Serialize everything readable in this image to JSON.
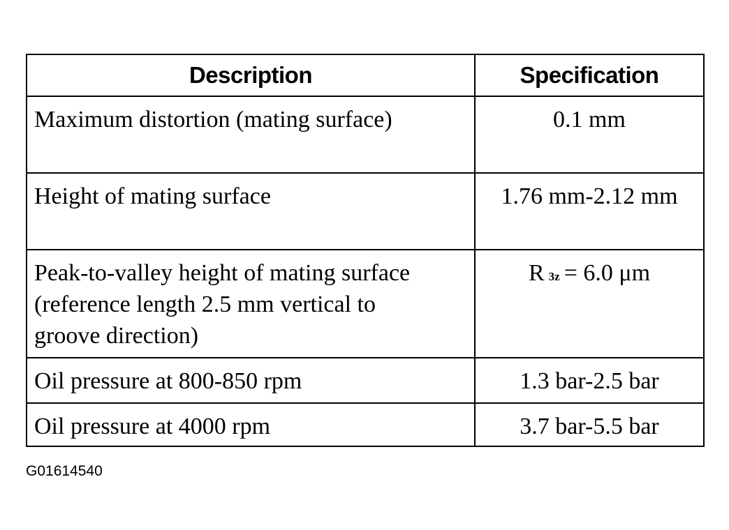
{
  "table": {
    "header": [
      "Description",
      "Specification"
    ],
    "rows": [
      [
        "Maximum distortion (mating surface)",
        "0.1 mm"
      ],
      [
        "Height of mating surface",
        "1.76 mm-2.12 mm"
      ],
      [
        "Peak-to-valley height of mating surface (reference length 2.5 mm vertical to groove direction)",
        {
          "base": "R",
          "subscript": "3z",
          "rest": "= 6.0 μm"
        }
      ],
      [
        "Oil pressure at 800-850 rpm",
        "1.3 bar-2.5 bar"
      ],
      [
        "Oil pressure at 4000 rpm",
        "3.7 bar-5.5 bar"
      ]
    ]
  },
  "footer": {
    "code": "G01614540"
  }
}
